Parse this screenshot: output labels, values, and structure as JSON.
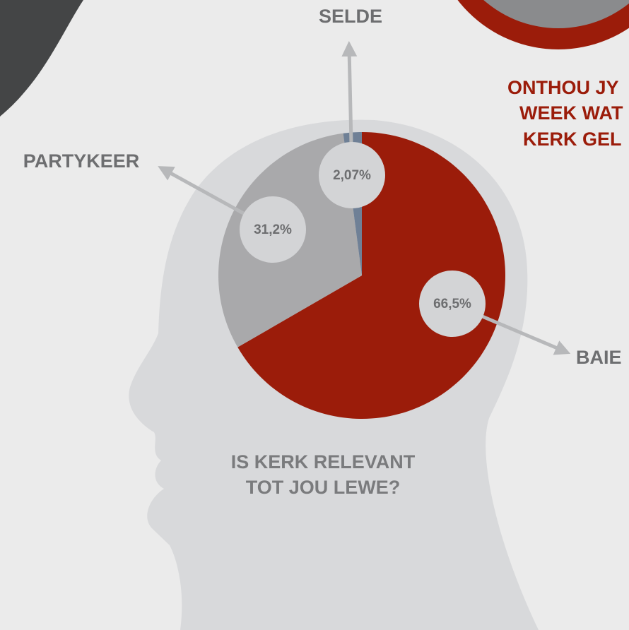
{
  "chart_data": {
    "type": "pie",
    "question_lines": [
      "IS KERK RELEVANT",
      "TOT JOU LEWE?"
    ],
    "categories": [
      "BAIE",
      "PARTYKEER",
      "SELDE"
    ],
    "values": [
      66.5,
      31.2,
      2.07
    ],
    "value_labels": [
      "66,5%",
      "31,2%",
      "2,07%"
    ],
    "colors": [
      "#9b1c0a",
      "#a9a9ab",
      "#6f8096"
    ],
    "annotations": [
      "ONTHOU JY",
      "WEEK WAT",
      "KERK GEL"
    ]
  }
}
